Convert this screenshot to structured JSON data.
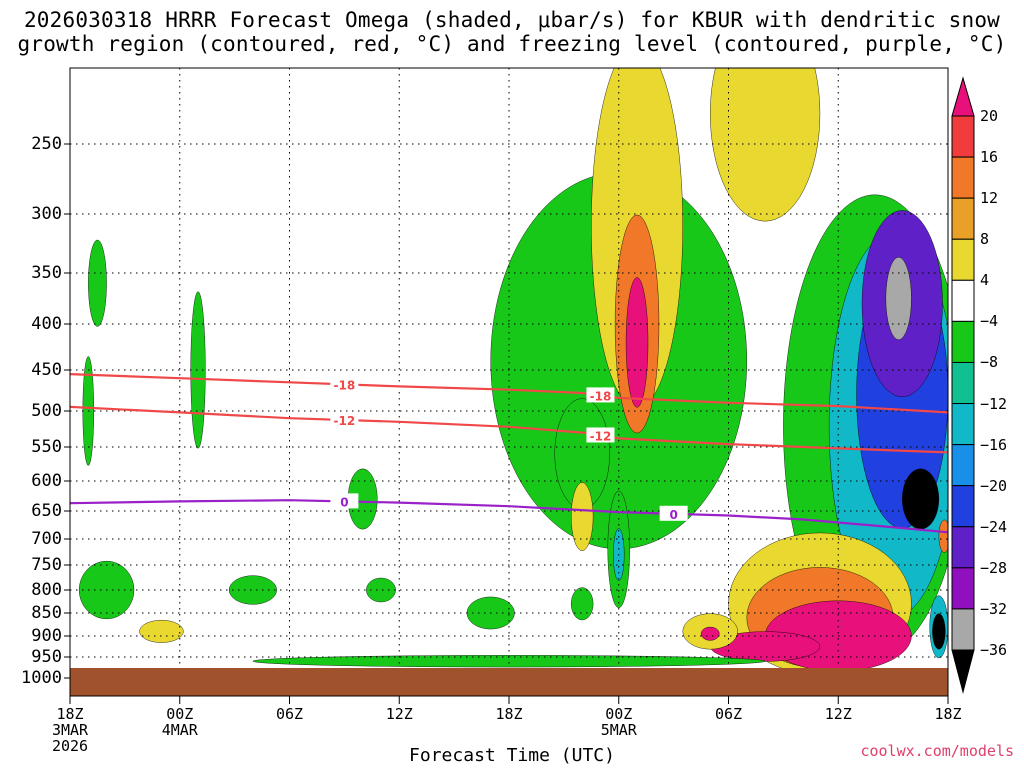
{
  "title": {
    "line1": "2026030318 HRRR Forecast Omega (shaded, μbar/s) for KBUR with dendritic snow",
    "line2": "growth region (contoured, red, °C) and freezing level (contoured, purple, °C)"
  },
  "xaxis_title": "Forecast Time (UTC)",
  "credit": "coolwx.com/models",
  "chart_data": {
    "type": "heatmap",
    "variable": "Omega (μbar/s)",
    "y_ticks": [
      250,
      300,
      350,
      400,
      450,
      500,
      550,
      600,
      650,
      700,
      750,
      800,
      850,
      900,
      950,
      1000
    ],
    "y_range": [
      1000,
      200
    ],
    "x_ticks": [
      {
        "hour": 0,
        "label": "18Z",
        "sub1": "3MAR",
        "sub2": "2026"
      },
      {
        "hour": 6,
        "label": "00Z",
        "sub1": "4MAR",
        "sub2": ""
      },
      {
        "hour": 12,
        "label": "06Z",
        "sub1": "",
        "sub2": ""
      },
      {
        "hour": 18,
        "label": "12Z",
        "sub1": "",
        "sub2": ""
      },
      {
        "hour": 24,
        "label": "18Z",
        "sub1": "",
        "sub2": ""
      },
      {
        "hour": 30,
        "label": "00Z",
        "sub1": "5MAR",
        "sub2": ""
      },
      {
        "hour": 36,
        "label": "06Z",
        "sub1": "",
        "sub2": ""
      },
      {
        "hour": 42,
        "label": "12Z",
        "sub1": "",
        "sub2": ""
      },
      {
        "hour": 48,
        "label": "18Z",
        "sub1": "",
        "sub2": ""
      }
    ],
    "x_range": [
      0,
      48
    ],
    "grid": true,
    "colorbar": {
      "labels": [
        "20",
        "16",
        "12",
        "8",
        "4",
        "−4",
        "−8",
        "−12",
        "−16",
        "−20",
        "−24",
        "−28",
        "−32",
        "−36"
      ],
      "colors": [
        "#e8107a",
        "#f03c3c",
        "#f07828",
        "#e8a028",
        "#e8d830",
        "#ffffff",
        "#18c818",
        "#10c090",
        "#10b8c8",
        "#1890e8",
        "#2040e0",
        "#6020c8",
        "#9010c0",
        "#a8a8a8",
        "#000000"
      ]
    },
    "contours": [
      {
        "name": "-18",
        "color": "#f04848",
        "points": [
          [
            0,
            455
          ],
          [
            6,
            460
          ],
          [
            12,
            465
          ],
          [
            18,
            470
          ],
          [
            24,
            474
          ],
          [
            28,
            478
          ],
          [
            30,
            484
          ],
          [
            36,
            490
          ],
          [
            42,
            494
          ],
          [
            48,
            502
          ]
        ]
      },
      {
        "name": "-12",
        "color": "#f04848",
        "points": [
          [
            0,
            495
          ],
          [
            6,
            502
          ],
          [
            12,
            510
          ],
          [
            18,
            515
          ],
          [
            24,
            522
          ],
          [
            28,
            530
          ],
          [
            30,
            538
          ],
          [
            36,
            546
          ],
          [
            42,
            552
          ],
          [
            48,
            558
          ]
        ]
      },
      {
        "name": "0",
        "color": "#9a20c8",
        "points": [
          [
            0,
            637
          ],
          [
            6,
            634
          ],
          [
            12,
            632
          ],
          [
            18,
            636
          ],
          [
            24,
            642
          ],
          [
            30,
            652
          ],
          [
            36,
            658
          ],
          [
            40,
            665
          ],
          [
            44,
            676
          ],
          [
            48,
            688
          ]
        ]
      }
    ],
    "blobs": [
      {
        "color": "#18c818",
        "cx": 30,
        "cy": 440,
        "rx": 7,
        "ry": 200
      },
      {
        "color": "#e8d830",
        "cx": 31,
        "cy": 310,
        "rx": 2.5,
        "ry": 220
      },
      {
        "color": "#f07828",
        "cx": 31,
        "cy": 400,
        "rx": 1.2,
        "ry": 110
      },
      {
        "color": "#e8107a",
        "cx": 31,
        "cy": 420,
        "rx": 0.6,
        "ry": 70
      },
      {
        "color": "#e8d830",
        "cx": 38,
        "cy": 230,
        "rx": 3,
        "ry": 130
      },
      {
        "color": "#18c818",
        "cx": 44,
        "cy": 520,
        "rx": 5,
        "ry": 280
      },
      {
        "color": "#10b8c8",
        "cx": 45,
        "cy": 520,
        "rx": 3.5,
        "ry": 240
      },
      {
        "color": "#2040e0",
        "cx": 45.5,
        "cy": 480,
        "rx": 2.5,
        "ry": 160
      },
      {
        "color": "#6020c8",
        "cx": 45.5,
        "cy": 380,
        "rx": 2.2,
        "ry": 90
      },
      {
        "color": "#a8a8a8",
        "cx": 45.3,
        "cy": 375,
        "rx": 0.7,
        "ry": 40
      },
      {
        "color": "#000000",
        "cx": 46.5,
        "cy": 630,
        "rx": 1.0,
        "ry": 50
      },
      {
        "color": "#e8d830",
        "cx": 41,
        "cy": 830,
        "rx": 5,
        "ry": 150
      },
      {
        "color": "#f07828",
        "cx": 41,
        "cy": 860,
        "rx": 4,
        "ry": 110
      },
      {
        "color": "#e8107a",
        "cx": 42,
        "cy": 900,
        "rx": 4,
        "ry": 80
      },
      {
        "color": "#e8107a",
        "cx": 38,
        "cy": 925,
        "rx": 3,
        "ry": 35
      },
      {
        "color": "#e8d830",
        "cx": 35,
        "cy": 890,
        "rx": 1.5,
        "ry": 40
      },
      {
        "color": "#e8107a",
        "cx": 35,
        "cy": 895,
        "rx": 0.5,
        "ry": 15
      },
      {
        "color": "#18c818",
        "cx": 2,
        "cy": 800,
        "rx": 1.5,
        "ry": 60
      },
      {
        "color": "#18c818",
        "cx": 1.5,
        "cy": 360,
        "rx": 0.5,
        "ry": 40
      },
      {
        "color": "#18c818",
        "cx": 1,
        "cy": 500,
        "rx": 0.3,
        "ry": 70
      },
      {
        "color": "#18c818",
        "cx": 7,
        "cy": 450,
        "rx": 0.4,
        "ry": 90
      },
      {
        "color": "#18c818",
        "cx": 10,
        "cy": 800,
        "rx": 1.3,
        "ry": 30
      },
      {
        "color": "#18c818",
        "cx": 16,
        "cy": 630,
        "rx": 0.8,
        "ry": 50
      },
      {
        "color": "#18c818",
        "cx": 17,
        "cy": 800,
        "rx": 0.8,
        "ry": 25
      },
      {
        "color": "#18c818",
        "cx": 23,
        "cy": 850,
        "rx": 1.3,
        "ry": 35
      },
      {
        "color": "#e8d830",
        "cx": 5,
        "cy": 890,
        "rx": 1.2,
        "ry": 25
      },
      {
        "color": "#18c818",
        "cx": 28,
        "cy": 560,
        "rx": 1.5,
        "ry": 80
      },
      {
        "color": "#e8d830",
        "cx": 28,
        "cy": 660,
        "rx": 0.6,
        "ry": 60
      },
      {
        "color": "#18c818",
        "cx": 30,
        "cy": 720,
        "rx": 0.6,
        "ry": 110
      },
      {
        "color": "#10b8c8",
        "cx": 30,
        "cy": 730,
        "rx": 0.3,
        "ry": 50
      },
      {
        "color": "#18c818",
        "cx": 28,
        "cy": 830,
        "rx": 0.6,
        "ry": 35
      },
      {
        "color": "#10b8c8",
        "cx": 47.5,
        "cy": 880,
        "rx": 0.5,
        "ry": 70
      },
      {
        "color": "#000000",
        "cx": 47.5,
        "cy": 890,
        "rx": 0.35,
        "ry": 40
      },
      {
        "color": "#f07828",
        "cx": 47.8,
        "cy": 695,
        "rx": 0.3,
        "ry": 30
      },
      {
        "color": "#18c818",
        "cx": 24,
        "cy": 960,
        "rx": 14,
        "ry": 14
      }
    ]
  }
}
